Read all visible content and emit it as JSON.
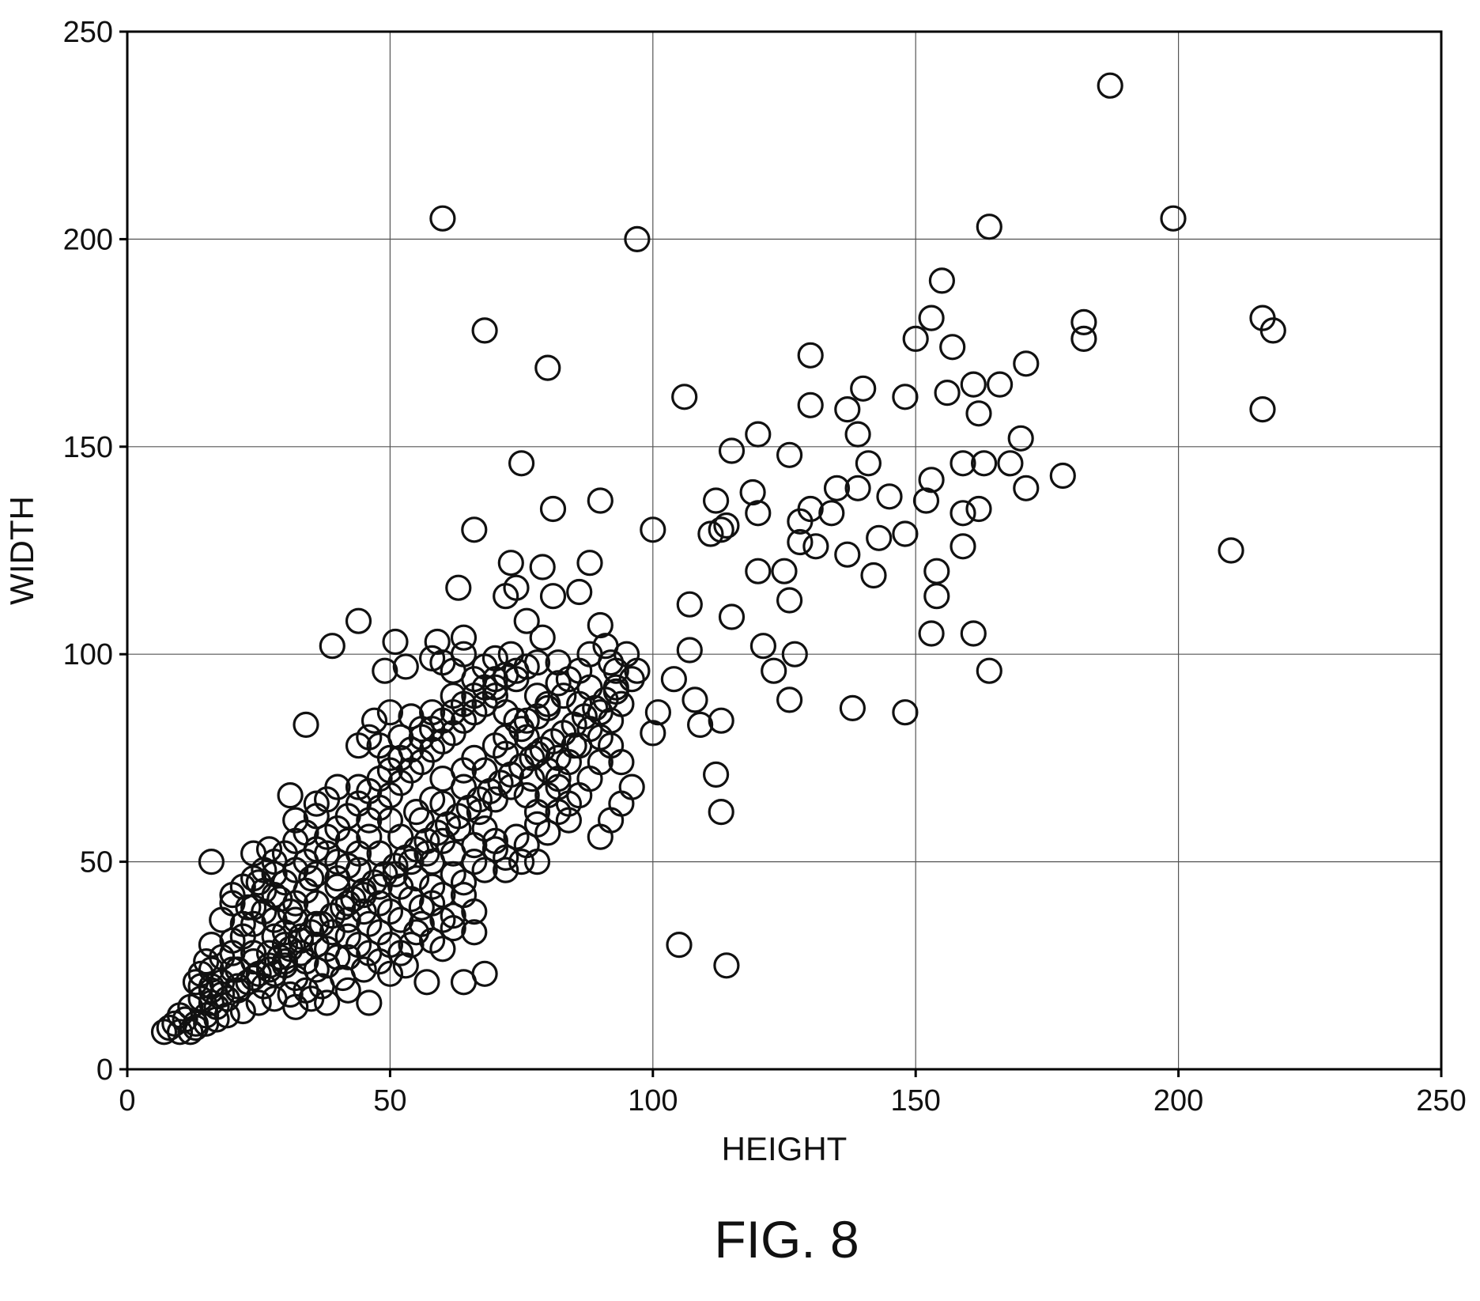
{
  "figure": {
    "caption": "FIG. 8"
  },
  "chart_data": {
    "type": "scatter",
    "xlabel": "HEIGHT",
    "ylabel": "WIDTH",
    "xlim": [
      0,
      250
    ],
    "ylim": [
      0,
      250
    ],
    "x_ticks": [
      0,
      50,
      100,
      150,
      200,
      250
    ],
    "y_ticks": [
      0,
      50,
      100,
      150,
      200,
      250
    ],
    "grid": true,
    "marker": "open-circle",
    "points": [
      [
        187,
        237
      ],
      [
        60,
        205
      ],
      [
        97,
        200
      ],
      [
        199,
        205
      ],
      [
        164,
        203
      ],
      [
        155,
        190
      ],
      [
        153,
        181
      ],
      [
        150,
        176
      ],
      [
        157,
        174
      ],
      [
        182,
        180
      ],
      [
        182,
        176
      ],
      [
        216,
        181
      ],
      [
        218,
        178
      ],
      [
        68,
        178
      ],
      [
        80,
        169
      ],
      [
        171,
        170
      ],
      [
        130,
        172
      ],
      [
        140,
        164
      ],
      [
        148,
        162
      ],
      [
        156,
        163
      ],
      [
        161,
        165
      ],
      [
        166,
        165
      ],
      [
        162,
        158
      ],
      [
        216,
        159
      ],
      [
        106,
        162
      ],
      [
        130,
        160
      ],
      [
        137,
        159
      ],
      [
        120,
        153
      ],
      [
        139,
        153
      ],
      [
        115,
        149
      ],
      [
        126,
        148
      ],
      [
        75,
        146
      ],
      [
        159,
        146
      ],
      [
        163,
        146
      ],
      [
        168,
        146
      ],
      [
        170,
        152
      ],
      [
        141,
        146
      ],
      [
        153,
        142
      ],
      [
        178,
        143
      ],
      [
        171,
        140
      ],
      [
        135,
        140
      ],
      [
        139,
        140
      ],
      [
        119,
        139
      ],
      [
        90,
        137
      ],
      [
        81,
        135
      ],
      [
        112,
        137
      ],
      [
        145,
        138
      ],
      [
        152,
        137
      ],
      [
        120,
        134
      ],
      [
        134,
        134
      ],
      [
        159,
        134
      ],
      [
        162,
        135
      ],
      [
        130,
        135
      ],
      [
        128,
        132
      ],
      [
        66,
        130
      ],
      [
        100,
        130
      ],
      [
        111,
        129
      ],
      [
        113,
        130
      ],
      [
        143,
        128
      ],
      [
        148,
        129
      ],
      [
        159,
        126
      ],
      [
        128,
        127
      ],
      [
        114,
        131
      ],
      [
        131,
        126
      ],
      [
        210,
        125
      ],
      [
        73,
        122
      ],
      [
        79,
        121
      ],
      [
        88,
        122
      ],
      [
        120,
        120
      ],
      [
        125,
        120
      ],
      [
        137,
        124
      ],
      [
        154,
        120
      ],
      [
        142,
        119
      ],
      [
        63,
        116
      ],
      [
        72,
        114
      ],
      [
        81,
        114
      ],
      [
        86,
        115
      ],
      [
        74,
        116
      ],
      [
        107,
        112
      ],
      [
        126,
        113
      ],
      [
        154,
        114
      ],
      [
        76,
        108
      ],
      [
        107,
        101
      ],
      [
        115,
        109
      ],
      [
        44,
        108
      ],
      [
        39,
        102
      ],
      [
        59,
        103
      ],
      [
        64,
        104
      ],
      [
        51,
        103
      ],
      [
        79,
        104
      ],
      [
        90,
        107
      ],
      [
        153,
        105
      ],
      [
        161,
        105
      ],
      [
        121,
        102
      ],
      [
        127,
        100
      ],
      [
        164,
        96
      ],
      [
        123,
        96
      ],
      [
        104,
        94
      ],
      [
        101,
        86
      ],
      [
        100,
        81
      ],
      [
        108,
        89
      ],
      [
        113,
        84
      ],
      [
        109,
        83
      ],
      [
        138,
        87
      ],
      [
        148,
        86
      ],
      [
        126,
        89
      ],
      [
        49,
        96
      ],
      [
        53,
        97
      ],
      [
        58,
        99
      ],
      [
        60,
        98
      ],
      [
        70,
        99
      ],
      [
        73,
        100
      ],
      [
        82,
        98
      ],
      [
        91,
        102
      ],
      [
        93,
        96
      ],
      [
        97,
        96
      ],
      [
        112,
        71
      ],
      [
        113,
        62
      ],
      [
        105,
        30
      ],
      [
        114,
        25
      ],
      [
        34,
        83
      ],
      [
        16,
        50
      ],
      [
        44,
        78
      ],
      [
        47,
        84
      ],
      [
        50,
        86
      ],
      [
        36,
        64
      ],
      [
        31,
        66
      ],
      [
        32,
        60
      ],
      [
        27,
        53
      ],
      [
        24,
        52
      ],
      [
        20,
        42
      ],
      [
        23,
        39
      ],
      [
        25,
        45
      ],
      [
        28,
        47
      ],
      [
        29,
        41
      ],
      [
        31,
        38
      ],
      [
        35,
        46
      ],
      [
        40,
        50
      ],
      [
        42,
        55
      ],
      [
        46,
        56
      ],
      [
        50,
        60
      ],
      [
        55,
        62
      ],
      [
        58,
        65
      ],
      [
        60,
        70
      ],
      [
        64,
        72
      ],
      [
        66,
        75
      ],
      [
        70,
        78
      ],
      [
        72,
        80
      ],
      [
        75,
        82
      ],
      [
        78,
        85
      ],
      [
        80,
        87
      ],
      [
        83,
        90
      ],
      [
        86,
        88
      ],
      [
        88,
        92
      ],
      [
        90,
        86
      ],
      [
        85,
        78
      ],
      [
        82,
        75
      ],
      [
        77,
        70
      ],
      [
        73,
        68
      ],
      [
        70,
        65
      ],
      [
        67,
        62
      ],
      [
        63,
        58
      ],
      [
        60,
        55
      ],
      [
        57,
        52
      ],
      [
        54,
        50
      ],
      [
        51,
        47
      ],
      [
        48,
        44
      ],
      [
        45,
        42
      ],
      [
        42,
        40
      ],
      [
        39,
        37
      ],
      [
        36,
        35
      ],
      [
        33,
        32
      ],
      [
        30,
        30
      ],
      [
        27,
        28
      ],
      [
        24,
        26
      ],
      [
        21,
        24
      ],
      [
        18,
        21
      ],
      [
        16,
        19
      ],
      [
        14,
        17
      ],
      [
        12,
        15
      ],
      [
        10,
        13
      ],
      [
        9,
        11
      ],
      [
        8,
        10
      ],
      [
        7,
        9
      ],
      [
        11,
        12
      ],
      [
        13,
        11
      ],
      [
        15,
        13
      ],
      [
        17,
        15
      ],
      [
        19,
        17
      ],
      [
        21,
        19
      ],
      [
        23,
        21
      ],
      [
        25,
        23
      ],
      [
        27,
        25
      ],
      [
        29,
        27
      ],
      [
        31,
        29
      ],
      [
        33,
        31
      ],
      [
        35,
        33
      ],
      [
        37,
        35
      ],
      [
        39,
        37
      ],
      [
        41,
        39
      ],
      [
        43,
        41
      ],
      [
        45,
        43
      ],
      [
        47,
        45
      ],
      [
        49,
        47
      ],
      [
        51,
        49
      ],
      [
        53,
        51
      ],
      [
        55,
        53
      ],
      [
        57,
        55
      ],
      [
        59,
        57
      ],
      [
        61,
        59
      ],
      [
        63,
        61
      ],
      [
        65,
        63
      ],
      [
        67,
        65
      ],
      [
        69,
        67
      ],
      [
        71,
        69
      ],
      [
        73,
        71
      ],
      [
        75,
        73
      ],
      [
        77,
        75
      ],
      [
        79,
        77
      ],
      [
        81,
        79
      ],
      [
        83,
        81
      ],
      [
        85,
        83
      ],
      [
        87,
        85
      ],
      [
        89,
        87
      ],
      [
        91,
        89
      ],
      [
        93,
        91
      ],
      [
        20,
        28
      ],
      [
        22,
        32
      ],
      [
        24,
        35
      ],
      [
        26,
        38
      ],
      [
        28,
        42
      ],
      [
        30,
        45
      ],
      [
        32,
        48
      ],
      [
        34,
        50
      ],
      [
        36,
        53
      ],
      [
        38,
        56
      ],
      [
        40,
        58
      ],
      [
        42,
        61
      ],
      [
        44,
        64
      ],
      [
        46,
        67
      ],
      [
        48,
        70
      ],
      [
        50,
        72
      ],
      [
        52,
        75
      ],
      [
        54,
        77
      ],
      [
        56,
        80
      ],
      [
        58,
        82
      ],
      [
        60,
        84
      ],
      [
        62,
        86
      ],
      [
        64,
        88
      ],
      [
        66,
        90
      ],
      [
        68,
        92
      ],
      [
        70,
        94
      ],
      [
        72,
        95
      ],
      [
        74,
        96
      ],
      [
        76,
        97
      ],
      [
        78,
        98
      ],
      [
        14,
        20
      ],
      [
        16,
        24
      ],
      [
        18,
        27
      ],
      [
        20,
        31
      ],
      [
        22,
        35
      ],
      [
        24,
        39
      ],
      [
        26,
        43
      ],
      [
        28,
        36
      ],
      [
        30,
        33
      ],
      [
        32,
        40
      ],
      [
        34,
        43
      ],
      [
        36,
        47
      ],
      [
        38,
        52
      ],
      [
        40,
        46
      ],
      [
        42,
        49
      ],
      [
        44,
        52
      ],
      [
        46,
        60
      ],
      [
        48,
        63
      ],
      [
        50,
        66
      ],
      [
        52,
        69
      ],
      [
        54,
        72
      ],
      [
        56,
        74
      ],
      [
        58,
        77
      ],
      [
        60,
        79
      ],
      [
        62,
        81
      ],
      [
        64,
        84
      ],
      [
        66,
        86
      ],
      [
        68,
        88
      ],
      [
        70,
        90
      ],
      [
        72,
        86
      ],
      [
        74,
        84
      ],
      [
        76,
        80
      ],
      [
        78,
        76
      ],
      [
        80,
        72
      ],
      [
        82,
        68
      ],
      [
        84,
        64
      ],
      [
        86,
        66
      ],
      [
        88,
        70
      ],
      [
        90,
        74
      ],
      [
        92,
        78
      ],
      [
        94,
        74
      ],
      [
        96,
        68
      ],
      [
        94,
        64
      ],
      [
        92,
        60
      ],
      [
        90,
        56
      ],
      [
        26,
        20
      ],
      [
        28,
        23
      ],
      [
        30,
        25
      ],
      [
        32,
        22
      ],
      [
        34,
        26
      ],
      [
        36,
        24
      ],
      [
        38,
        29
      ],
      [
        40,
        27
      ],
      [
        42,
        32
      ],
      [
        44,
        30
      ],
      [
        46,
        35
      ],
      [
        48,
        33
      ],
      [
        50,
        38
      ],
      [
        52,
        36
      ],
      [
        54,
        41
      ],
      [
        56,
        39
      ],
      [
        58,
        44
      ],
      [
        60,
        42
      ],
      [
        62,
        47
      ],
      [
        64,
        45
      ],
      [
        66,
        50
      ],
      [
        68,
        48
      ],
      [
        70,
        53
      ],
      [
        72,
        51
      ],
      [
        74,
        56
      ],
      [
        76,
        54
      ],
      [
        78,
        59
      ],
      [
        80,
        57
      ],
      [
        82,
        62
      ],
      [
        84,
        60
      ],
      [
        32,
        15
      ],
      [
        35,
        17
      ],
      [
        38,
        16
      ],
      [
        42,
        19
      ],
      [
        46,
        16
      ],
      [
        50,
        23
      ],
      [
        53,
        25
      ],
      [
        57,
        21
      ],
      [
        60,
        29
      ],
      [
        64,
        21
      ],
      [
        68,
        23
      ],
      [
        66,
        33
      ],
      [
        62,
        37
      ],
      [
        58,
        40
      ],
      [
        55,
        33
      ],
      [
        52,
        28
      ],
      [
        48,
        26
      ],
      [
        45,
        24
      ],
      [
        41,
        22
      ],
      [
        37,
        20
      ],
      [
        34,
        19
      ],
      [
        31,
        18
      ],
      [
        28,
        17
      ],
      [
        25,
        16
      ],
      [
        22,
        14
      ],
      [
        19,
        13
      ],
      [
        17,
        12
      ],
      [
        15,
        11
      ],
      [
        13,
        10
      ],
      [
        12,
        9
      ],
      [
        10,
        9
      ],
      [
        44,
        68
      ],
      [
        40,
        68
      ],
      [
        38,
        65
      ],
      [
        36,
        61
      ],
      [
        34,
        57
      ],
      [
        32,
        55
      ],
      [
        30,
        52
      ],
      [
        28,
        50
      ],
      [
        26,
        48
      ],
      [
        24,
        46
      ],
      [
        22,
        44
      ],
      [
        20,
        40
      ],
      [
        18,
        36
      ],
      [
        16,
        30
      ],
      [
        15,
        26
      ],
      [
        14,
        23
      ],
      [
        13,
        21
      ],
      [
        50,
        75
      ],
      [
        48,
        78
      ],
      [
        46,
        80
      ],
      [
        52,
        80
      ],
      [
        54,
        85
      ],
      [
        56,
        82
      ],
      [
        58,
        86
      ],
      [
        62,
        90
      ],
      [
        66,
        94
      ],
      [
        68,
        97
      ],
      [
        64,
        100
      ],
      [
        62,
        96
      ],
      [
        70,
        92
      ],
      [
        74,
        94
      ],
      [
        78,
        90
      ],
      [
        82,
        93
      ],
      [
        86,
        96
      ],
      [
        88,
        100
      ],
      [
        92,
        98
      ],
      [
        95,
        100
      ],
      [
        84,
        94
      ],
      [
        80,
        88
      ],
      [
        76,
        84
      ],
      [
        72,
        76
      ],
      [
        68,
        72
      ],
      [
        64,
        68
      ],
      [
        60,
        64
      ],
      [
        56,
        60
      ],
      [
        52,
        56
      ],
      [
        48,
        52
      ],
      [
        44,
        48
      ],
      [
        40,
        44
      ],
      [
        36,
        40
      ],
      [
        32,
        36
      ],
      [
        28,
        32
      ],
      [
        24,
        28
      ],
      [
        20,
        24
      ],
      [
        16,
        20
      ],
      [
        66,
        38
      ],
      [
        64,
        42
      ],
      [
        62,
        34
      ],
      [
        60,
        36
      ],
      [
        58,
        31
      ],
      [
        56,
        35
      ],
      [
        54,
        30
      ],
      [
        50,
        30
      ],
      [
        46,
        28
      ],
      [
        42,
        27
      ],
      [
        38,
        25
      ],
      [
        76,
        66
      ],
      [
        78,
        62
      ],
      [
        80,
        66
      ],
      [
        82,
        70
      ],
      [
        84,
        74
      ],
      [
        86,
        78
      ],
      [
        88,
        82
      ],
      [
        90,
        80
      ],
      [
        92,
        84
      ],
      [
        94,
        88
      ],
      [
        93,
        92
      ],
      [
        96,
        94
      ],
      [
        75,
        50
      ],
      [
        78,
        50
      ],
      [
        72,
        48
      ],
      [
        70,
        55
      ],
      [
        68,
        58
      ],
      [
        66,
        54
      ],
      [
        62,
        52
      ],
      [
        58,
        50
      ],
      [
        55,
        46
      ],
      [
        52,
        44
      ],
      [
        48,
        40
      ],
      [
        45,
        38
      ],
      [
        42,
        36
      ],
      [
        39,
        33
      ],
      [
        36,
        30
      ],
      [
        33,
        28
      ],
      [
        30,
        26
      ],
      [
        27,
        24
      ],
      [
        24,
        22
      ],
      [
        21,
        20
      ],
      [
        18,
        18
      ],
      [
        16,
        16
      ]
    ]
  }
}
